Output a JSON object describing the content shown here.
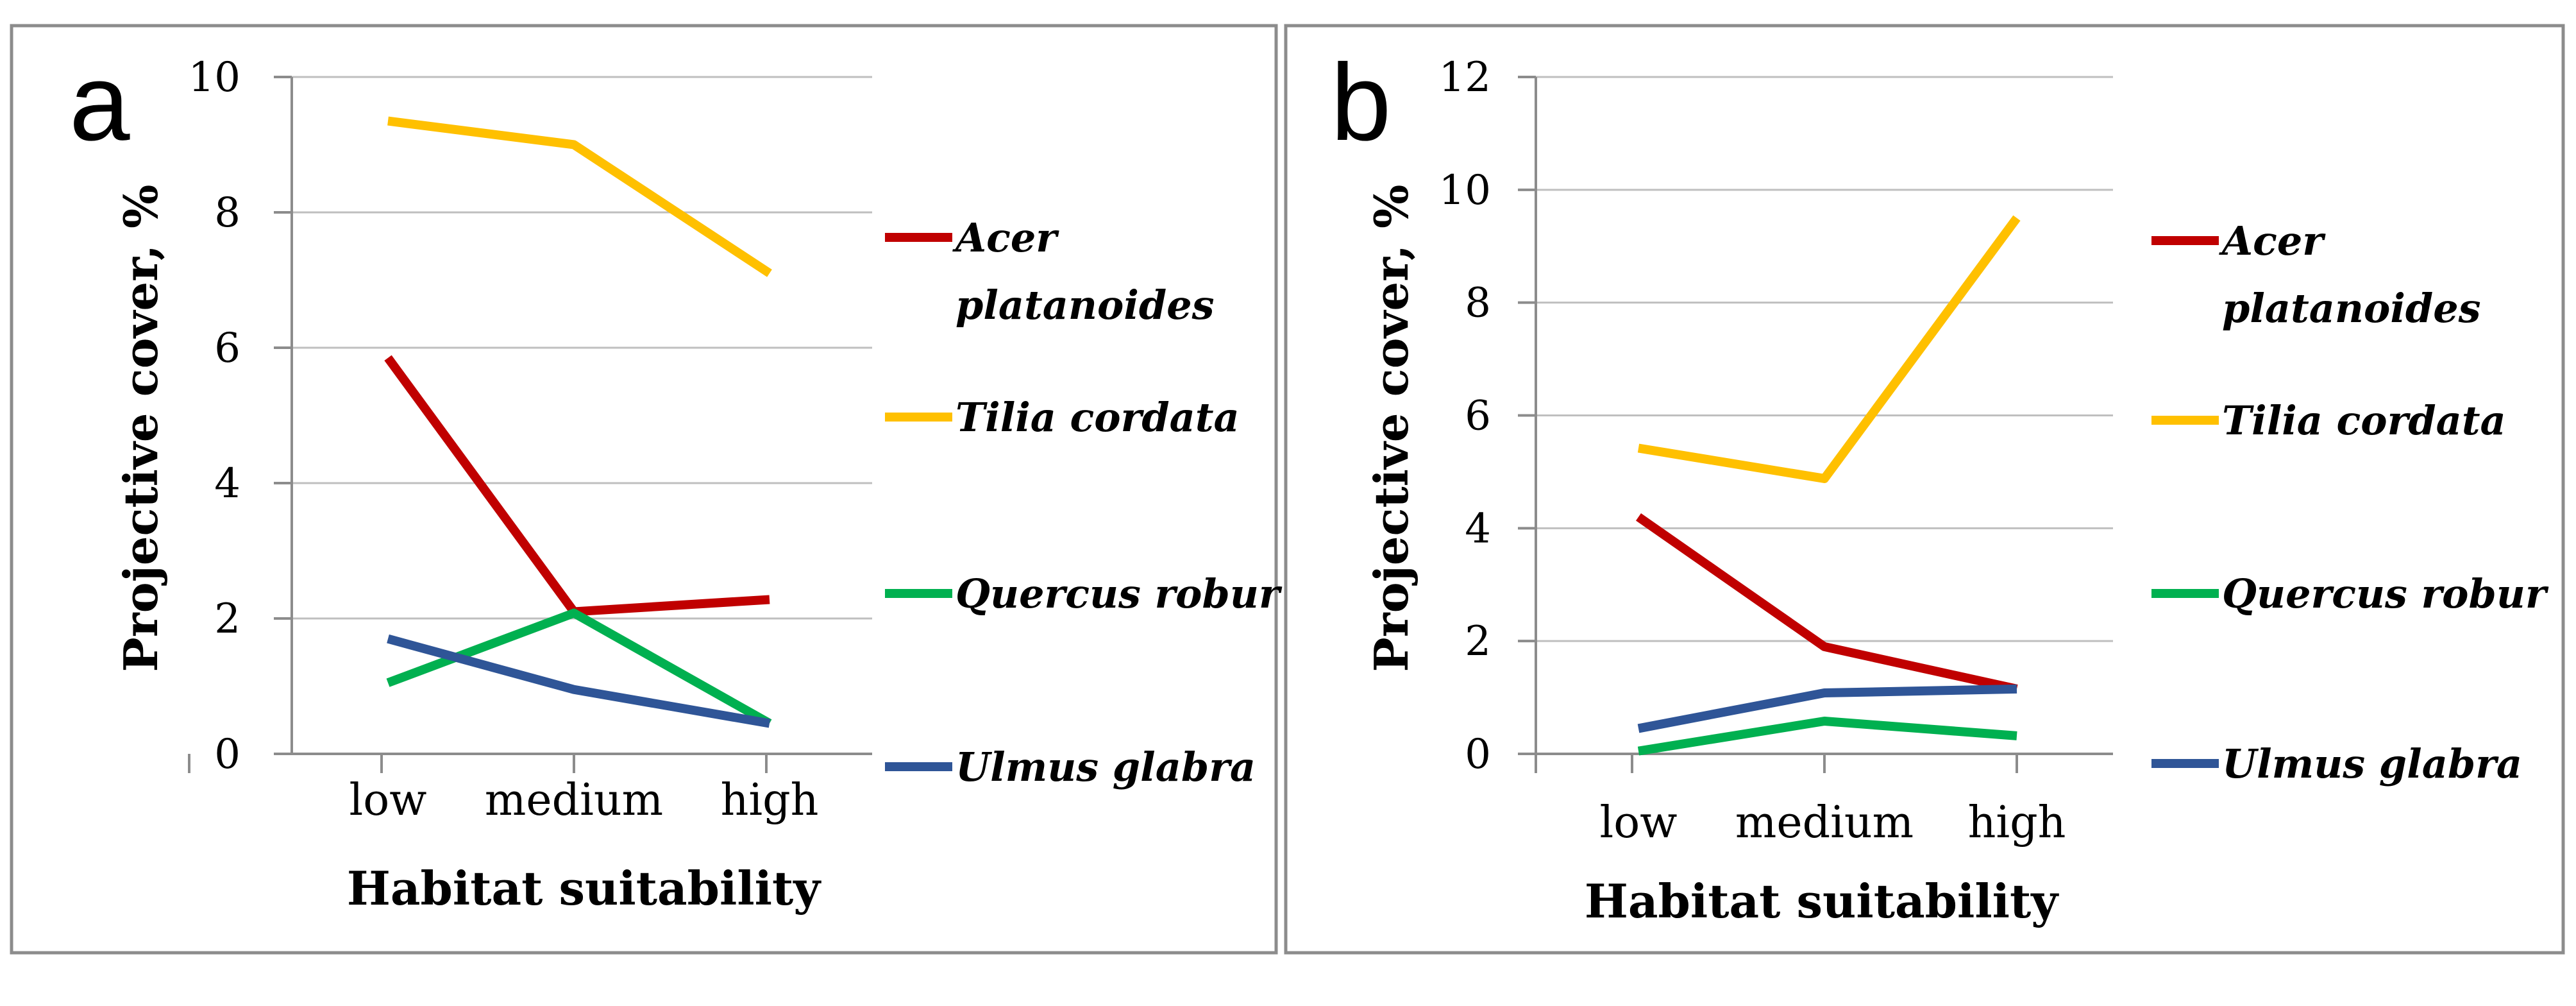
{
  "colors": {
    "acer": "#c00000",
    "tilia": "#ffc000",
    "quercus": "#00b050",
    "ulmus": "#2f5597"
  },
  "chart_data": [
    {
      "type": "line",
      "panel_label": "a",
      "categories": [
        "low",
        "medium",
        "high"
      ],
      "xlabel": "Habitat suitability",
      "ylabel": "Projective cover, %",
      "ylim": [
        0,
        10
      ],
      "yticks": [
        0,
        2,
        4,
        6,
        8,
        10
      ],
      "grid": true,
      "legend_position": "right",
      "series": [
        {
          "key": "acer",
          "name_lines": [
            "Acer",
            "platanoides"
          ],
          "values": [
            5.85,
            2.1,
            2.28
          ]
        },
        {
          "key": "tilia",
          "name_lines": [
            "Tilia cordata"
          ],
          "values": [
            9.35,
            9.0,
            7.1
          ]
        },
        {
          "key": "quercus",
          "name_lines": [
            "Quercus robur"
          ],
          "values": [
            1.05,
            2.08,
            0.45
          ]
        },
        {
          "key": "ulmus",
          "name_lines": [
            "Ulmus glabra"
          ],
          "values": [
            1.7,
            0.95,
            0.45
          ]
        }
      ]
    },
    {
      "type": "line",
      "panel_label": "b",
      "categories": [
        "low",
        "medium",
        "high"
      ],
      "xlabel": "Habitat suitability",
      "ylabel": "Projective cover, %",
      "ylim": [
        0,
        12
      ],
      "yticks": [
        0,
        2,
        4,
        6,
        8,
        10,
        12
      ],
      "grid": true,
      "legend_position": "right",
      "series": [
        {
          "key": "acer",
          "name_lines": [
            "Acer",
            "platanoides"
          ],
          "values": [
            4.2,
            1.9,
            1.15
          ]
        },
        {
          "key": "tilia",
          "name_lines": [
            "Tilia cordata"
          ],
          "values": [
            5.42,
            4.88,
            9.5
          ]
        },
        {
          "key": "quercus",
          "name_lines": [
            "Quercus robur"
          ],
          "values": [
            0.05,
            0.58,
            0.32
          ]
        },
        {
          "key": "ulmus",
          "name_lines": [
            "Ulmus glabra"
          ],
          "values": [
            0.45,
            1.08,
            1.15
          ]
        }
      ]
    }
  ]
}
